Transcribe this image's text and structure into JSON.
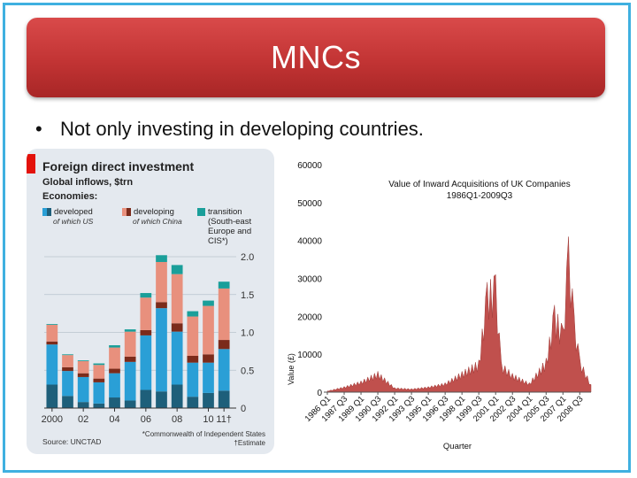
{
  "slide": {
    "title": "MNCs",
    "bullet_mark": "•",
    "bullet": "Not only investing in developing countries."
  },
  "colors": {
    "banner": "#c23434",
    "frame": "#3fb0e0",
    "developed": "#2a9fd6",
    "developed_us": "#1e5f7a",
    "developing": "#e8907d",
    "developing_china": "#7b2b1b",
    "transition": "#1a9f9a",
    "uk_area": "#c0504d"
  },
  "econ": {
    "title": "Foreign direct investment",
    "subtitle": "Global inflows, $trn",
    "economies_label": "Economies:",
    "legend": {
      "developed": "developed",
      "developed_sub": "of which US",
      "developing": "developing",
      "developing_sub": "of which China",
      "transition": "transition",
      "transition_sub": "(South-east Europe and CIS*)"
    },
    "source": "Source: UNCTAD",
    "footnote1": "*Commonwealth of Independent States",
    "footnote2": "†Estimate"
  },
  "uk": {
    "title_line1": "Value of Inward Acquisitions of UK Companies",
    "title_line2": "1986Q1-2009Q3",
    "ylabel": "Value (£)",
    "xlabel": "Quarter"
  },
  "chart_data": [
    {
      "type": "bar",
      "stacked": true,
      "categories": [
        "2000",
        "2001",
        "2002",
        "2003",
        "2004",
        "2005",
        "2006",
        "2007",
        "2008",
        "2009",
        "2010",
        "2011"
      ],
      "x_tick_labels": [
        "2000",
        "02",
        "04",
        "06",
        "08",
        "10",
        "11†"
      ],
      "y_tick_labels": [
        "0",
        "0.5",
        "1.0",
        "1.5",
        "2.0"
      ],
      "ylim": [
        0,
        2.0
      ],
      "series": [
        {
          "name": "of which US",
          "values": [
            0.31,
            0.16,
            0.08,
            0.06,
            0.14,
            0.1,
            0.24,
            0.22,
            0.31,
            0.15,
            0.2,
            0.23
          ]
        },
        {
          "name": "developed",
          "values": [
            0.53,
            0.33,
            0.33,
            0.28,
            0.32,
            0.51,
            0.72,
            1.1,
            0.7,
            0.45,
            0.4,
            0.55
          ]
        },
        {
          "name": "of which China",
          "values": [
            0.04,
            0.05,
            0.05,
            0.05,
            0.06,
            0.07,
            0.07,
            0.08,
            0.11,
            0.09,
            0.11,
            0.12
          ]
        },
        {
          "name": "developing",
          "values": [
            0.22,
            0.16,
            0.16,
            0.18,
            0.28,
            0.33,
            0.43,
            0.53,
            0.65,
            0.52,
            0.64,
            0.68
          ]
        },
        {
          "name": "transition",
          "values": [
            0.01,
            0.01,
            0.01,
            0.02,
            0.03,
            0.03,
            0.06,
            0.09,
            0.12,
            0.07,
            0.07,
            0.09
          ]
        }
      ]
    },
    {
      "type": "area",
      "title": "Value of Inward Acquisitions of UK Companies 1986Q1-2009Q3",
      "xlabel": "Quarter",
      "ylabel": "Value (£)",
      "ylim": [
        0,
        60000
      ],
      "y_tick_labels": [
        "0",
        "10000",
        "20000",
        "30000",
        "40000",
        "50000",
        "60000"
      ],
      "x_tick_labels": [
        "1986 Q1",
        "1987 Q3",
        "1989 Q1",
        "1990 Q3",
        "1992 Q1",
        "1993 Q3",
        "1995 Q1",
        "1996 Q3",
        "1998 Q1",
        "1999 Q3",
        "2001 Q1",
        "2002 Q3",
        "2004 Q1",
        "2005 Q3",
        "2007 Q1",
        "2008 Q3"
      ],
      "x": [
        "1986 Q1",
        "1987 Q3",
        "1989 Q1",
        "1990 Q3",
        "1992 Q1",
        "1993 Q3",
        "1995 Q1",
        "1996 Q3",
        "1998 Q1",
        "1999 Q3",
        "2000 Q2",
        "2001 Q1",
        "2001 Q3",
        "2002 Q3",
        "2004 Q1",
        "2005 Q3",
        "2006 Q2",
        "2007 Q1",
        "2007 Q3",
        "2008 Q1",
        "2008 Q3",
        "2009 Q3"
      ],
      "values": [
        300,
        1500,
        3000,
        5500,
        1200,
        900,
        1500,
        2500,
        5500,
        8500,
        29000,
        31000,
        8000,
        5000,
        2500,
        9000,
        23000,
        17000,
        41000,
        20500,
        9000,
        2000
      ]
    }
  ]
}
